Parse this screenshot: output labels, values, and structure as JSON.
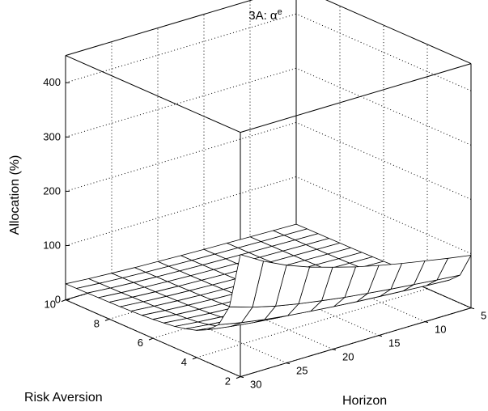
{
  "chart_data": {
    "type": "surface",
    "title": "3A: α",
    "title_superscript": "e",
    "xlabel": "Horizon",
    "ylabel": "Risk Aversion",
    "zlabel": "Allocation (%)",
    "x_ticks": [
      "5",
      "10",
      "15",
      "20",
      "25",
      "30"
    ],
    "y_ticks": [
      "2",
      "4",
      "6",
      "8",
      "10"
    ],
    "z_ticks": [
      "0",
      "100",
      "200",
      "300",
      "400"
    ],
    "xlim": [
      5,
      30
    ],
    "ylim": [
      2,
      10
    ],
    "zlim": [
      0,
      450
    ],
    "grid": true,
    "horizon": [
      5,
      7.5,
      10,
      12.5,
      15,
      17.5,
      20,
      22.5,
      25,
      27.5,
      30
    ],
    "risk_aversion": [
      2,
      2.5,
      3,
      3.5,
      4,
      4.5,
      5,
      5.5,
      6,
      6.5,
      7,
      7.5,
      8,
      8.5,
      9,
      9.5,
      10
    ],
    "allocation_row_at_risk_aversion_2": [
      97,
      104,
      112,
      120,
      129,
      139,
      151,
      164,
      180,
      200,
      225
    ],
    "allocation_profile_at_horizon_30": [
      225,
      120,
      78,
      60,
      50,
      44,
      39.5,
      37,
      35,
      33.5,
      32.5,
      31.7,
      31.1,
      30.6,
      30.2,
      29.9,
      29.6
    ],
    "surface_color": "#ffffff",
    "edge_color": "#000000"
  }
}
